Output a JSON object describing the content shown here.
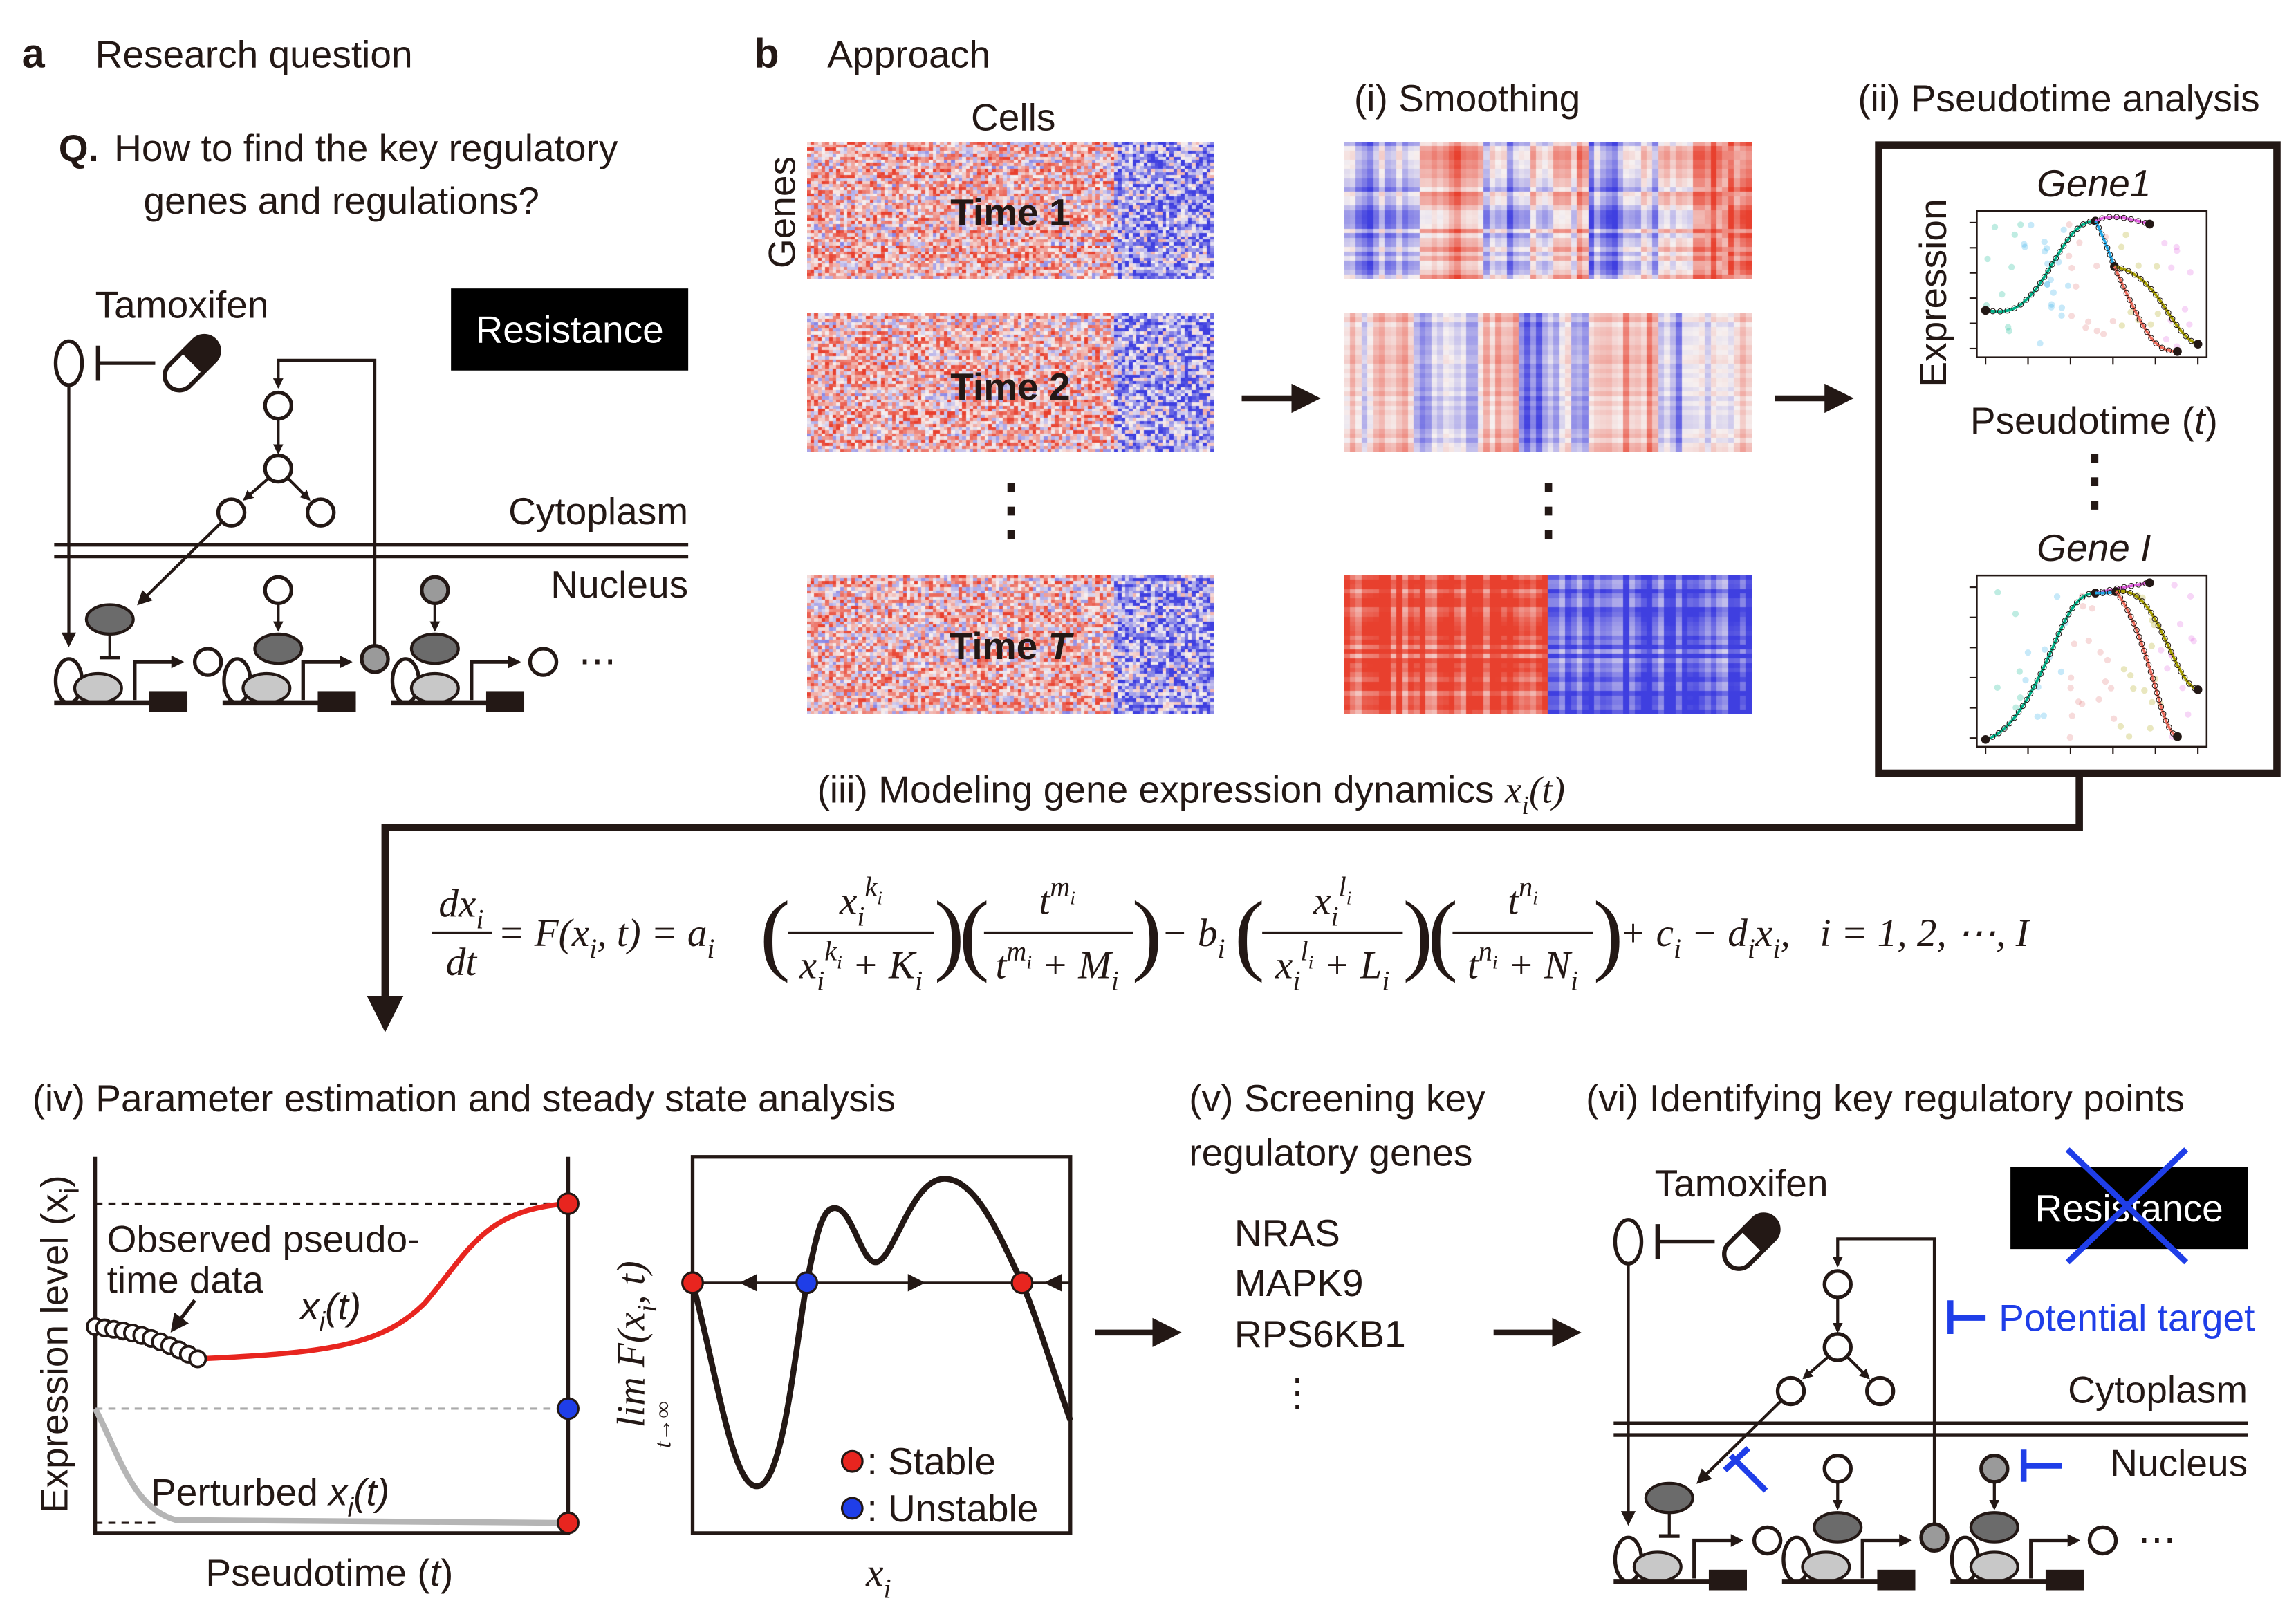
{
  "panel_a": {
    "letter": "a",
    "title": "Research question",
    "q_prefix": "Q.",
    "q_line1": "How to find the key regulatory",
    "q_line2": "genes and regulations?"
  },
  "a": {
    "tamoxifen": "Tamoxifen",
    "resistance": "Resistance",
    "cytoplasm": "Cytoplasm",
    "nucleus": "Nucleus",
    "ellipsis": "⋯"
  },
  "vi": {
    "tamoxifen": "Tamoxifen",
    "resistance": "Resistance",
    "cytoplasm": "Cytoplasm",
    "nucleus": "Nucleus",
    "ellipsis": "⋯",
    "potential_target": "Potential target"
  },
  "panel_b": {
    "letter": "b",
    "title": "Approach",
    "cells": "Cells",
    "genes": "Genes",
    "time1": "Time 1",
    "time2": "Time 2",
    "timeT_prefix": "Time ",
    "timeT_var": "T",
    "smoothing": "(i) Smoothing",
    "pseudotime_analysis": "(ii) Pseudotime analysis",
    "gene1": "Gene1",
    "geneI": "Gene I",
    "expression": "Expression",
    "pt_pre": "Pseudotime (",
    "pt_var": "t",
    "pt_post": ")",
    "modeling": "(iii) Modeling gene expression dynamics ",
    "modeling_var": "x_i(t)"
  },
  "equation": {
    "lhs_num": "dx_i",
    "lhs_den": "dt",
    "mid": "= F(x_i, t) = a_i",
    "f1_num": "x_i^{k_i}",
    "f1_den": "x_i^{k_i} + K_i",
    "f2_num": "t^{m_i}",
    "f2_den": "t^{m_i} + M_i",
    "minus_b": "− b_i",
    "f3_num": "x_i^{l_i}",
    "f3_den": "x_i^{l_i} + L_i",
    "f4_num": "t^{n_i}",
    "f4_den": "t^{n_i} + N_i",
    "tail": "+ c_i − d_ix_i,   i = 1, 2, ⋯, I",
    "lparen": "(",
    "rparen": ")"
  },
  "panel_iv": {
    "title": "(iv) Parameter estimation and steady state analysis",
    "ylabel": "Expression level (x_i)",
    "xlabel_pre": "Pseudotime (",
    "xlabel_var": "t",
    "xlabel_post": ")",
    "observed_1": "Observed pseudo-",
    "observed_2": "time data",
    "curve_label": "x_i(t)",
    "perturbed_pre": "Perturbed ",
    "perturbed_var": "x_i(t)",
    "lim_label": "lim F(x_i, t)",
    "lim_sub": "t→∞",
    "x2label": "x_i",
    "stable": ": Stable",
    "unstable": ": Unstable"
  },
  "panel_v": {
    "title_1": "(v) Screening key",
    "title_2": "regulatory genes",
    "genes": [
      "NRAS",
      "MAPK9",
      "RPS6KB1"
    ],
    "more": "⋮"
  },
  "panel_vi": {
    "title": "(vi) Identifying key regulatory points"
  },
  "colors": {
    "stable": "#e8251f",
    "unstable": "#1f3ee8",
    "target": "#1f3ee8",
    "heat_red": "#e8402e",
    "heat_blue": "#3f3fe0"
  }
}
